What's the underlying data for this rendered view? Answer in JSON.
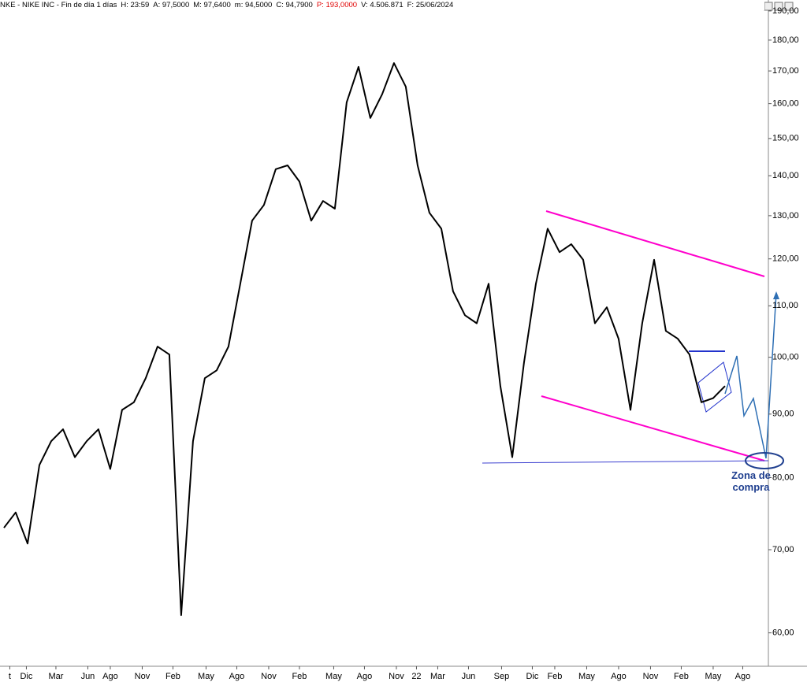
{
  "header": [
    "NKE - NIKE INC - Fin de día 1 días",
    "H: 23:59",
    "A: 97,5000",
    "M: 97,6400",
    "m: 94,5000",
    "C: 94,7900",
    "P: 193,0000",
    "V: 4.506.871",
    "F: 25/06/2024"
  ],
  "chart_data": {
    "type": "line",
    "log_scale": true,
    "grid": false,
    "annotation": "Zona de compra",
    "xlim": [
      -0.33,
      64.67
    ],
    "ylim": [
      56.4,
      192.2
    ],
    "xticks": [
      {
        "value": 0.5,
        "label": "t"
      },
      {
        "value": 1.9,
        "label": "Dic"
      },
      {
        "value": 4.4,
        "label": "Mar"
      },
      {
        "value": 7.1,
        "label": "Jun"
      },
      {
        "value": 9,
        "label": "Ago"
      },
      {
        "value": 11.7,
        "label": "Nov"
      },
      {
        "value": 14.3,
        "label": "Feb"
      },
      {
        "value": 17.1,
        "label": "May"
      },
      {
        "value": 19.7,
        "label": "Ago"
      },
      {
        "value": 22.4,
        "label": "Nov"
      },
      {
        "value": 25,
        "label": "Feb"
      },
      {
        "value": 27.9,
        "label": "May"
      },
      {
        "value": 30.5,
        "label": "Ago"
      },
      {
        "value": 33.2,
        "label": "Nov"
      },
      {
        "value": 34.9,
        "label": "22"
      },
      {
        "value": 36.7,
        "label": "Mar"
      },
      {
        "value": 39.3,
        "label": "Jun"
      },
      {
        "value": 42.1,
        "label": "Sep"
      },
      {
        "value": 44.7,
        "label": "Dic"
      },
      {
        "value": 46.6,
        "label": "Feb"
      },
      {
        "value": 49.3,
        "label": "May"
      },
      {
        "value": 52,
        "label": "Ago"
      },
      {
        "value": 54.7,
        "label": "Nov"
      },
      {
        "value": 57.3,
        "label": "Feb"
      },
      {
        "value": 60,
        "label": "May"
      },
      {
        "value": 62.5,
        "label": "Ago"
      }
    ],
    "yticks": [
      {
        "value": 190,
        "label": "190,00"
      },
      {
        "value": 180,
        "label": "180,00"
      },
      {
        "value": 170,
        "label": "170,00"
      },
      {
        "value": 160,
        "label": "160,00"
      },
      {
        "value": 150,
        "label": "150,00"
      },
      {
        "value": 140,
        "label": "140,00"
      },
      {
        "value": 130,
        "label": "130,00"
      },
      {
        "value": 120,
        "label": "120,00"
      },
      {
        "value": 110,
        "label": "110,00"
      },
      {
        "value": 100,
        "label": "100,00"
      },
      {
        "value": 90,
        "label": "90,00"
      },
      {
        "value": 80,
        "label": "80,00"
      },
      {
        "value": 70,
        "label": "70,00"
      },
      {
        "value": 60,
        "label": "60,00"
      }
    ],
    "x": [
      0,
      1,
      2,
      3,
      4,
      5,
      6,
      7,
      8,
      9,
      10,
      11,
      12,
      13,
      14,
      15,
      16,
      17,
      18,
      19,
      20,
      21,
      22,
      23,
      24,
      25,
      26,
      27,
      28,
      29,
      30,
      31,
      32,
      33,
      34,
      35,
      36,
      37,
      38,
      39,
      40,
      41,
      42,
      43,
      44,
      45,
      46,
      47,
      48,
      49,
      50,
      51,
      52,
      53,
      54,
      55,
      56,
      57,
      58,
      59,
      60,
      61
    ],
    "series": [
      {
        "color": "#000000",
        "values": [
          72.9,
          75.0,
          70.8,
          81.9,
          85.6,
          87.5,
          83.1,
          85.6,
          87.5,
          81.3,
          90.7,
          92.0,
          96.2,
          102,
          100.5,
          62.0,
          85.6,
          96.2,
          97.6,
          102,
          114.6,
          128.8,
          132.6,
          141.7,
          142.7,
          138.5,
          128.8,
          133.6,
          131.7,
          160.4,
          171.3,
          155.8,
          162.8,
          172.5,
          165.1,
          142.7,
          130.7,
          126.9,
          113,
          108.1,
          106.5,
          114.6,
          94.8,
          83.1,
          99,
          114.6,
          126.9,
          121.5,
          123.3,
          119.8,
          106.5,
          109.7,
          103.5,
          90.7,
          106.5,
          119.8,
          105,
          103.5,
          100.5,
          92,
          92.7,
          94.8
        ]
      }
    ]
  }
}
